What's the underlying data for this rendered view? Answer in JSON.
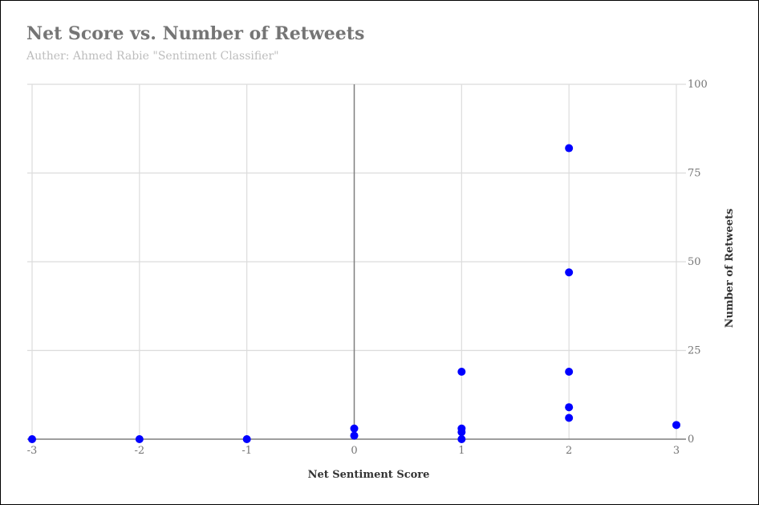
{
  "chart_data": {
    "type": "scatter",
    "title": "Net Score vs. Number of Retweets",
    "subtitle": "Auther: Ahmed Rabie \"Sentiment Classifier\"",
    "xlabel": "Net Sentiment Score",
    "ylabel": "Number of Retweets",
    "xlim": [
      -3,
      3
    ],
    "ylim": [
      0,
      100
    ],
    "x_ticks": [
      -3,
      -2,
      -1,
      0,
      1,
      2,
      3
    ],
    "y_ticks": [
      0,
      25,
      50,
      75,
      100
    ],
    "y_axis_side": "right",
    "grid": true,
    "legend": "none",
    "points": [
      {
        "x": -3,
        "y": 0
      },
      {
        "x": -2,
        "y": 0
      },
      {
        "x": -1,
        "y": 0
      },
      {
        "x": 0,
        "y": 1
      },
      {
        "x": 0,
        "y": 3
      },
      {
        "x": 1,
        "y": 0
      },
      {
        "x": 1,
        "y": 2
      },
      {
        "x": 1,
        "y": 3
      },
      {
        "x": 1,
        "y": 19
      },
      {
        "x": 2,
        "y": 6
      },
      {
        "x": 2,
        "y": 9
      },
      {
        "x": 2,
        "y": 19
      },
      {
        "x": 2,
        "y": 47
      },
      {
        "x": 2,
        "y": 82
      },
      {
        "x": 3,
        "y": 4
      }
    ]
  },
  "colors": {
    "point": "#0000ff",
    "grid": "#dcdcdc",
    "zero_line": "#7f7f7f",
    "title": "#757575",
    "subtitle": "#bdbdbd"
  }
}
